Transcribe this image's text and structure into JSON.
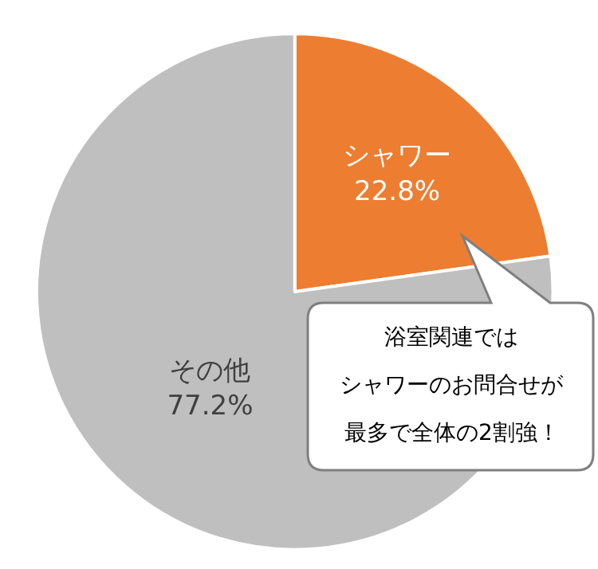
{
  "chart_data": {
    "type": "pie",
    "categories": [
      "シャワー",
      "その他"
    ],
    "values": [
      22.8,
      77.2
    ],
    "value_labels": [
      "22.8%",
      "77.2%"
    ],
    "colors": [
      "#ed7d31",
      "#bfbfbf"
    ],
    "legend": false,
    "annotations": [
      "浴室関連では",
      "シャワーのお問合せが",
      "最多で全体の2割強！"
    ]
  }
}
